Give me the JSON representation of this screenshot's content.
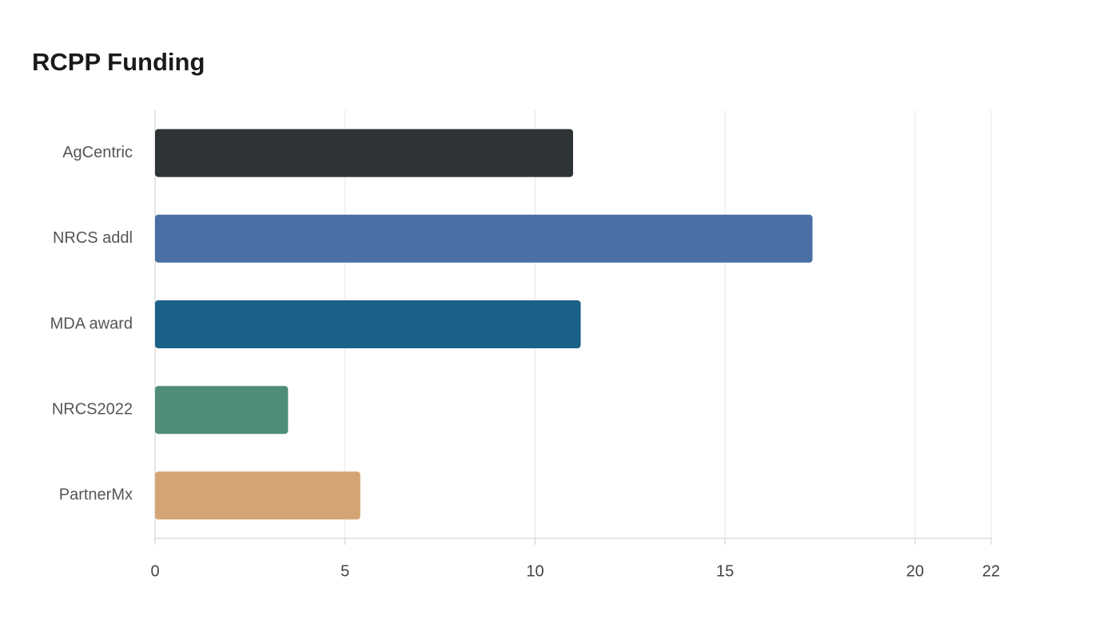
{
  "chart_data": {
    "type": "bar",
    "orientation": "horizontal",
    "title": "RCPP Funding",
    "categories": [
      "AgCentric",
      "NRCS addl",
      "MDA award",
      "NRCS2022",
      "PartnerMx"
    ],
    "values": [
      11.0,
      17.3,
      11.2,
      3.5,
      5.4
    ],
    "colors": [
      "#2e3436",
      "#4a6fa5",
      "#1a6087",
      "#4f8d7a",
      "#d4a574"
    ],
    "xlim": [
      0,
      22
    ],
    "xticks": [
      0,
      5,
      10,
      15,
      20,
      22
    ],
    "grid": true
  }
}
